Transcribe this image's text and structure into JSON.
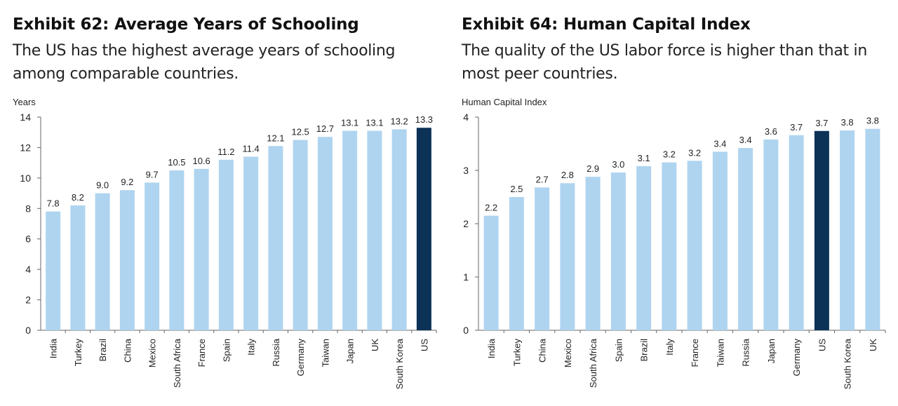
{
  "chart_data": [
    {
      "type": "bar",
      "title": "Exhibit 62: Average Years of Schooling",
      "subtitle": "The US has the highest average years of schooling among comparable countries.",
      "ylabel": "Years",
      "xlabel": "",
      "ylim": [
        0,
        14
      ],
      "yticks": [
        0,
        2,
        4,
        6,
        8,
        10,
        12,
        14
      ],
      "grid": false,
      "categories": [
        "India",
        "Turkey",
        "Brazil",
        "China",
        "Mexico",
        "South Africa",
        "France",
        "Spain",
        "Italy",
        "Russia",
        "Germany",
        "Taiwan",
        "Japan",
        "UK",
        "South Korea",
        "US"
      ],
      "values": [
        7.8,
        8.2,
        9.0,
        9.2,
        9.7,
        10.5,
        10.6,
        11.2,
        11.4,
        12.1,
        12.5,
        12.7,
        13.1,
        13.1,
        13.2,
        13.3
      ],
      "value_labels": [
        "7.8",
        "8.2",
        "9.0",
        "9.2",
        "9.7",
        "10.5",
        "10.6",
        "11.2",
        "11.4",
        "12.1",
        "12.5",
        "12.7",
        "13.1",
        "13.1",
        "13.2",
        "13.3"
      ],
      "highlight": "US",
      "colors": {
        "bar": "#afd4f0",
        "highlight": "#0c3257"
      }
    },
    {
      "type": "bar",
      "title": "Exhibit 64: Human Capital Index",
      "subtitle": "The quality of the US labor force is higher than that in most peer countries.",
      "ylabel": "Human Capital Index",
      "xlabel": "",
      "ylim": [
        0,
        4
      ],
      "yticks": [
        0,
        1,
        2,
        3,
        4
      ],
      "grid": false,
      "categories": [
        "India",
        "Turkey",
        "China",
        "Mexico",
        "South Africa",
        "Spain",
        "Brazil",
        "Italy",
        "France",
        "Taiwan",
        "Russia",
        "Japan",
        "Germany",
        "US",
        "South Korea",
        "UK"
      ],
      "values": [
        2.15,
        2.5,
        2.68,
        2.76,
        2.88,
        2.96,
        3.08,
        3.15,
        3.18,
        3.35,
        3.42,
        3.58,
        3.66,
        3.74,
        3.75,
        3.78
      ],
      "value_labels": [
        "2.2",
        "2.5",
        "2.7",
        "2.8",
        "2.9",
        "3.0",
        "3.1",
        "3.2",
        "3.2",
        "3.4",
        "3.4",
        "3.6",
        "3.7",
        "3.7",
        "3.8",
        "3.8"
      ],
      "highlight": "US",
      "colors": {
        "bar": "#afd4f0",
        "highlight": "#0c3257"
      }
    }
  ]
}
